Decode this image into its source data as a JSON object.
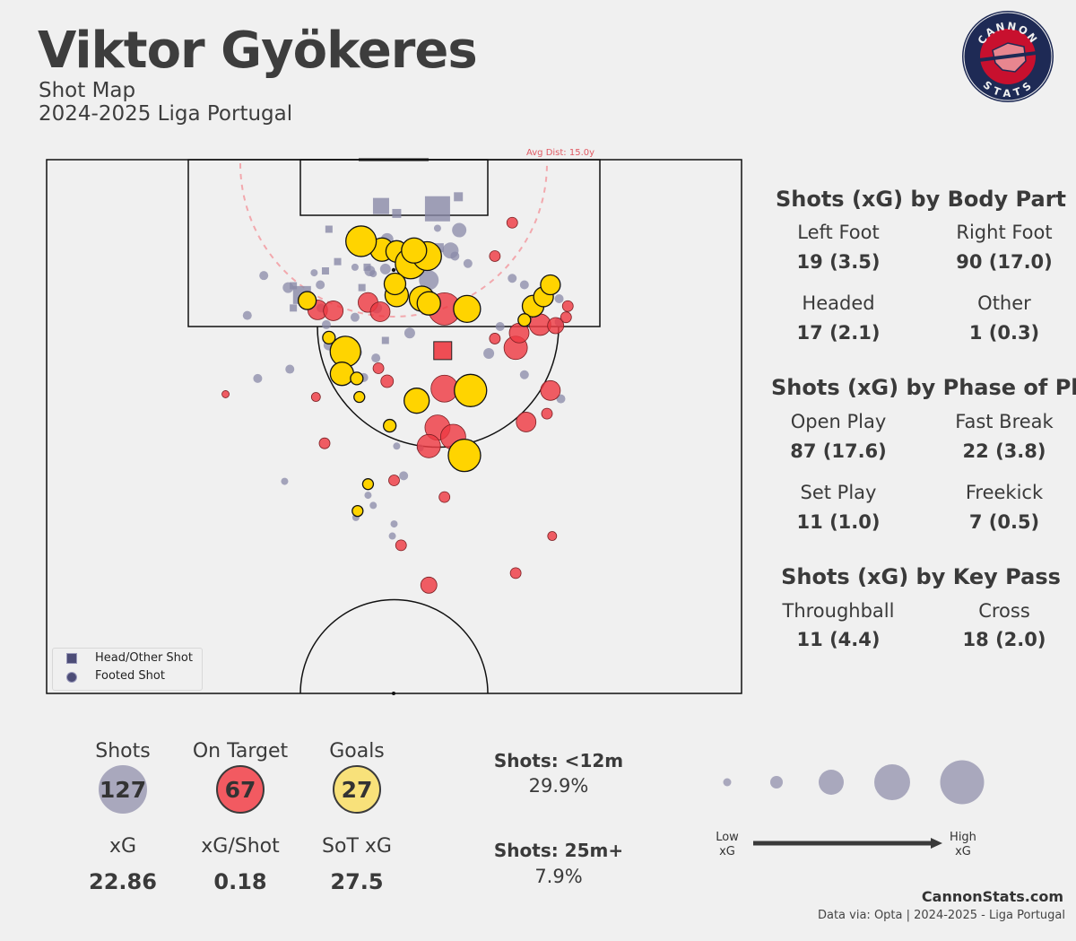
{
  "header": {
    "player": "Viktor Gyökeres",
    "subtitle": "Shot Map",
    "season": "2024-2025 Liga Portugal"
  },
  "logo": {
    "top_text": "CANNON",
    "bottom_text": "STATS"
  },
  "avg_dist_label": "Avg Dist: 15.0y",
  "body_part": {
    "title": "Shots (xG) by Body Part",
    "items": [
      {
        "label": "Left Foot",
        "value": "19 (3.5)"
      },
      {
        "label": "Right Foot",
        "value": "90 (17.0)"
      },
      {
        "label": "Headed",
        "value": "17 (2.1)"
      },
      {
        "label": "Other",
        "value": "1 (0.3)"
      }
    ]
  },
  "phase": {
    "title": "Shots (xG) by Phase of Play",
    "items": [
      {
        "label": "Open Play",
        "value": "87 (17.6)"
      },
      {
        "label": "Fast Break",
        "value": "22 (3.8)"
      },
      {
        "label": "Set Play",
        "value": "11 (1.0)"
      },
      {
        "label": "Freekick",
        "value": "7 (0.5)"
      }
    ]
  },
  "key_pass": {
    "title": "Shots (xG) by Key Pass",
    "items": [
      {
        "label": "Throughball",
        "value": "11 (4.4)"
      },
      {
        "label": "Cross",
        "value": "18 (2.0)"
      }
    ]
  },
  "summary": {
    "shots_label": "Shots",
    "shots_value": "127",
    "on_target_label": "On Target",
    "on_target_value": "67",
    "goals_label": "Goals",
    "goals_value": "27",
    "xg_label": "xG",
    "xg_value": "22.86",
    "xg_shot_label": "xG/Shot",
    "xg_shot_value": "0.18",
    "sot_xg_label": "SoT xG",
    "sot_xg_value": "27.5"
  },
  "distance": {
    "short_label": "Shots: <12m",
    "short_value": "29.9%",
    "long_label": "Shots: 25m+",
    "long_value": "7.9%"
  },
  "size_legend": {
    "low": "Low\nxG",
    "high": "High\nxG",
    "low_line1": "Low",
    "low_line2": "xG",
    "high_line1": "High",
    "high_line2": "xG"
  },
  "legend": {
    "head_label": "Head/Other Shot",
    "foot_label": "Footed Shot"
  },
  "footer": {
    "brand": "CannonStats.com",
    "source": "Data via: Opta | 2024-2025 - Liga Portugal"
  },
  "colors": {
    "miss": "#8a8aa8",
    "on_target": "#ee3b43",
    "goal": "#ffd400",
    "text": "#3a3a3a",
    "background": "#f0f0f0"
  },
  "chart_data": {
    "type": "scatter",
    "pitch": "half",
    "size_encoding": "xG",
    "shots": [
      {
        "x": 9.7,
        "y": 38.6,
        "r": 13,
        "outcome": "goal",
        "shape": "circle"
      },
      {
        "x": 8.8,
        "y": 36.2,
        "r": 17,
        "outcome": "goal",
        "shape": "circle"
      },
      {
        "x": 9.9,
        "y": 40.3,
        "r": 12,
        "outcome": "goal",
        "shape": "circle"
      },
      {
        "x": 11.2,
        "y": 41.9,
        "r": 17,
        "outcome": "goal",
        "shape": "circle"
      },
      {
        "x": 10.4,
        "y": 43.8,
        "r": 16,
        "outcome": "goal",
        "shape": "circle"
      },
      {
        "x": 9.8,
        "y": 42.3,
        "r": 14,
        "outcome": "goal",
        "shape": "circle"
      },
      {
        "x": 15.0,
        "y": 43.2,
        "r": 14,
        "outcome": "goal",
        "shape": "circle"
      },
      {
        "x": 15.5,
        "y": 44.0,
        "r": 13,
        "outcome": "goal",
        "shape": "circle"
      },
      {
        "x": 14.6,
        "y": 40.3,
        "r": 13,
        "outcome": "goal",
        "shape": "circle"
      },
      {
        "x": 13.4,
        "y": 40.1,
        "r": 12,
        "outcome": "goal",
        "shape": "circle"
      },
      {
        "x": 16.1,
        "y": 48.4,
        "r": 15,
        "outcome": "goal",
        "shape": "circle"
      },
      {
        "x": 15.8,
        "y": 56.0,
        "r": 12,
        "outcome": "goal",
        "shape": "circle"
      },
      {
        "x": 14.8,
        "y": 57.2,
        "r": 11,
        "outcome": "goal",
        "shape": "circle"
      },
      {
        "x": 13.5,
        "y": 58.0,
        "r": 11,
        "outcome": "goal",
        "shape": "circle"
      },
      {
        "x": 17.3,
        "y": 55.0,
        "r": 7,
        "outcome": "goal",
        "shape": "circle"
      },
      {
        "x": 15.2,
        "y": 30.0,
        "r": 10,
        "outcome": "goal",
        "shape": "circle"
      },
      {
        "x": 19.2,
        "y": 32.5,
        "r": 7,
        "outcome": "goal",
        "shape": "circle"
      },
      {
        "x": 20.7,
        "y": 34.4,
        "r": 17,
        "outcome": "goal",
        "shape": "circle"
      },
      {
        "x": 23.1,
        "y": 34.0,
        "r": 13,
        "outcome": "goal",
        "shape": "circle"
      },
      {
        "x": 23.6,
        "y": 35.7,
        "r": 7,
        "outcome": "goal",
        "shape": "circle"
      },
      {
        "x": 25.6,
        "y": 36.0,
        "r": 6,
        "outcome": "goal",
        "shape": "circle"
      },
      {
        "x": 26.0,
        "y": 42.6,
        "r": 14,
        "outcome": "goal",
        "shape": "circle"
      },
      {
        "x": 24.9,
        "y": 48.8,
        "r": 18,
        "outcome": "goal",
        "shape": "circle"
      },
      {
        "x": 28.7,
        "y": 39.5,
        "r": 7,
        "outcome": "goal",
        "shape": "circle"
      },
      {
        "x": 31.9,
        "y": 48.1,
        "r": 18,
        "outcome": "goal",
        "shape": "circle"
      },
      {
        "x": 35.0,
        "y": 37.0,
        "r": 6,
        "outcome": "goal",
        "shape": "circle"
      },
      {
        "x": 37.9,
        "y": 35.8,
        "r": 6,
        "outcome": "goal",
        "shape": "circle"
      },
      {
        "x": 16.1,
        "y": 45.8,
        "r": 18,
        "outcome": "on_target",
        "shape": "circle"
      },
      {
        "x": 15.4,
        "y": 37.0,
        "r": 11,
        "outcome": "on_target",
        "shape": "circle"
      },
      {
        "x": 16.4,
        "y": 38.4,
        "r": 11,
        "outcome": "on_target",
        "shape": "circle"
      },
      {
        "x": 10.4,
        "y": 51.6,
        "r": 6,
        "outcome": "on_target",
        "shape": "circle"
      },
      {
        "x": 20.6,
        "y": 45.6,
        "r": 10,
        "outcome": "square",
        "shape": "square"
      },
      {
        "x": 20.3,
        "y": 54.0,
        "r": 13,
        "outcome": "on_target",
        "shape": "circle"
      },
      {
        "x": 23.9,
        "y": 39.2,
        "r": 7,
        "outcome": "on_target",
        "shape": "circle"
      },
      {
        "x": 24.7,
        "y": 45.8,
        "r": 15,
        "outcome": "on_target",
        "shape": "circle"
      },
      {
        "x": 28.9,
        "y": 45.0,
        "r": 14,
        "outcome": "on_target",
        "shape": "circle"
      },
      {
        "x": 29.9,
        "y": 46.8,
        "r": 14,
        "outcome": "on_target",
        "shape": "circle"
      },
      {
        "x": 28.3,
        "y": 55.2,
        "r": 11,
        "outcome": "on_target",
        "shape": "circle"
      },
      {
        "x": 17.8,
        "y": 56.8,
        "r": 12,
        "outcome": "on_target",
        "shape": "circle"
      },
      {
        "x": 18.7,
        "y": 54.4,
        "r": 11,
        "outcome": "on_target",
        "shape": "circle"
      },
      {
        "x": 17.9,
        "y": 58.6,
        "r": 9,
        "outcome": "on_target",
        "shape": "circle"
      },
      {
        "x": 15.8,
        "y": 60.0,
        "r": 6,
        "outcome": "on_target",
        "shape": "circle"
      },
      {
        "x": 19.3,
        "y": 51.6,
        "r": 6,
        "outcome": "on_target",
        "shape": "circle"
      },
      {
        "x": 16.2,
        "y": 31.2,
        "r": 11,
        "outcome": "on_target",
        "shape": "circle"
      },
      {
        "x": 16.3,
        "y": 33.0,
        "r": 11,
        "outcome": "on_target",
        "shape": "circle"
      },
      {
        "x": 24.9,
        "y": 58.0,
        "r": 11,
        "outcome": "on_target",
        "shape": "circle"
      },
      {
        "x": 27.4,
        "y": 57.6,
        "r": 6,
        "outcome": "on_target",
        "shape": "circle"
      },
      {
        "x": 22.5,
        "y": 38.2,
        "r": 6,
        "outcome": "on_target",
        "shape": "circle"
      },
      {
        "x": 23.1,
        "y": 34.6,
        "r": 6,
        "outcome": "on_target",
        "shape": "circle"
      },
      {
        "x": 25.6,
        "y": 31.0,
        "r": 5,
        "outcome": "on_target",
        "shape": "circle"
      },
      {
        "x": 30.6,
        "y": 32.0,
        "r": 6,
        "outcome": "on_target",
        "shape": "circle"
      },
      {
        "x": 30.9,
        "y": 44.0,
        "r": 13,
        "outcome": "on_target",
        "shape": "circle"
      },
      {
        "x": 25.3,
        "y": 20.6,
        "r": 4,
        "outcome": "on_target",
        "shape": "circle"
      },
      {
        "x": 34.6,
        "y": 40.0,
        "r": 6,
        "outcome": "on_target",
        "shape": "circle"
      },
      {
        "x": 36.4,
        "y": 45.8,
        "r": 6,
        "outcome": "on_target",
        "shape": "circle"
      },
      {
        "x": 41.6,
        "y": 40.8,
        "r": 6,
        "outcome": "on_target",
        "shape": "circle"
      },
      {
        "x": 45.9,
        "y": 44.0,
        "r": 9,
        "outcome": "on_target",
        "shape": "circle"
      },
      {
        "x": 44.6,
        "y": 54.0,
        "r": 6,
        "outcome": "on_target",
        "shape": "circle"
      },
      {
        "x": 40.6,
        "y": 58.2,
        "r": 5,
        "outcome": "on_target",
        "shape": "circle"
      },
      {
        "x": 6.8,
        "y": 53.6,
        "r": 6,
        "outcome": "on_target",
        "shape": "circle"
      },
      {
        "x": 17.0,
        "y": 59.8,
        "r": 6,
        "outcome": "on_target",
        "shape": "circle"
      }
    ],
    "avg_distance_yards": 15.0,
    "legend_items": [
      "Head/Other Shot",
      "Footed Shot"
    ]
  }
}
